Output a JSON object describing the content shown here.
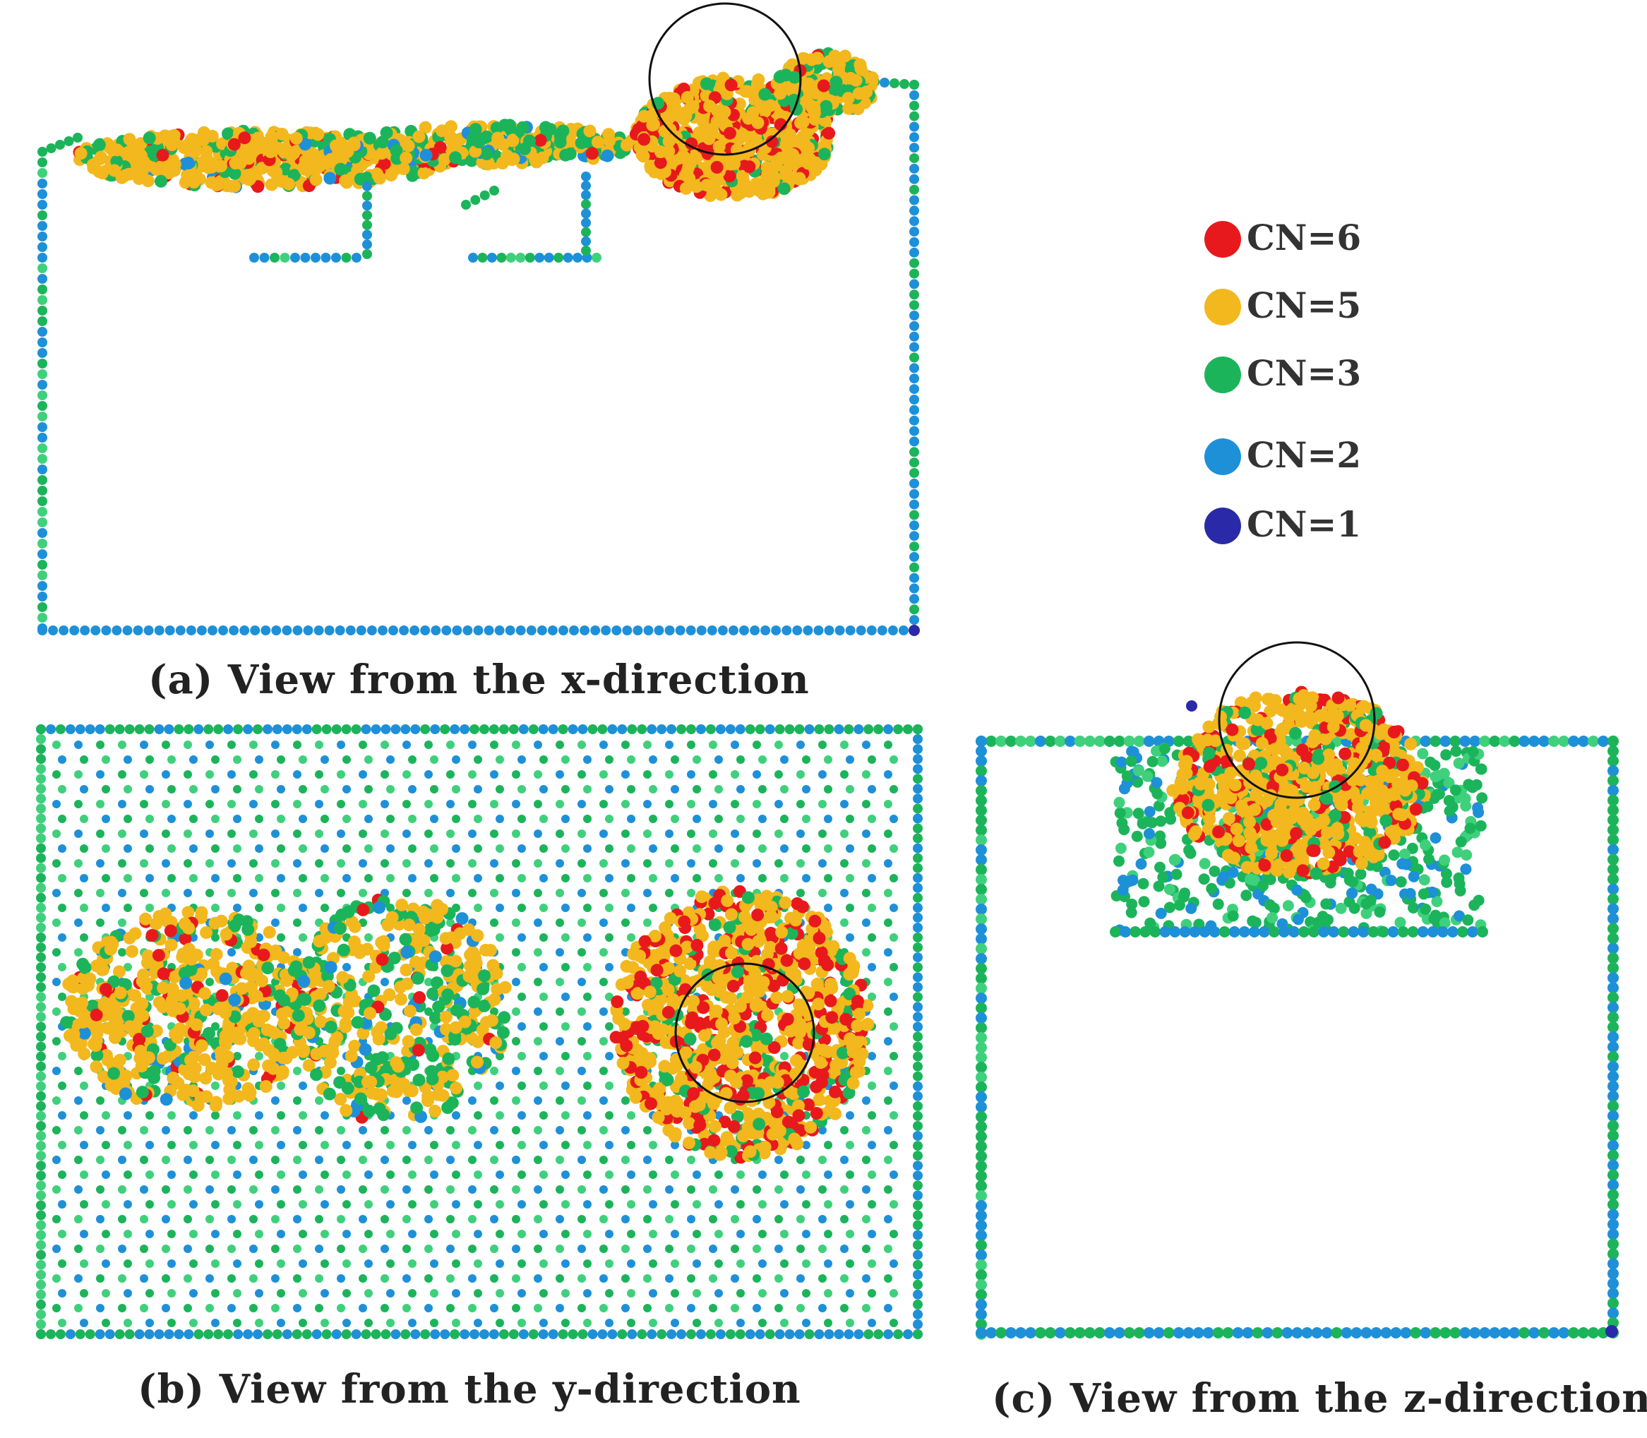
{
  "captions": {
    "a": "(a) View from the x-direction",
    "b": "(b) View from the y-direction",
    "c": "(c) View from the z-direction"
  },
  "legend": [
    {
      "label": "CN=6",
      "color": "#e8191c"
    },
    {
      "label": "CN=5",
      "color": "#f2b81d"
    },
    {
      "label": "CN=3",
      "color": "#1cb45a"
    },
    {
      "label": "CN=2",
      "color": "#1e90d8"
    },
    {
      "label": "CN=1",
      "color": "#2a2aa8"
    }
  ],
  "colors": {
    "cn6": "#e8191c",
    "cn5": "#f2b81d",
    "cn3": "#1cb45a",
    "cn3_light": "#3fd07c",
    "cn2": "#1e90d8",
    "cn1": "#2a2aa8",
    "circle": "#111111"
  }
}
